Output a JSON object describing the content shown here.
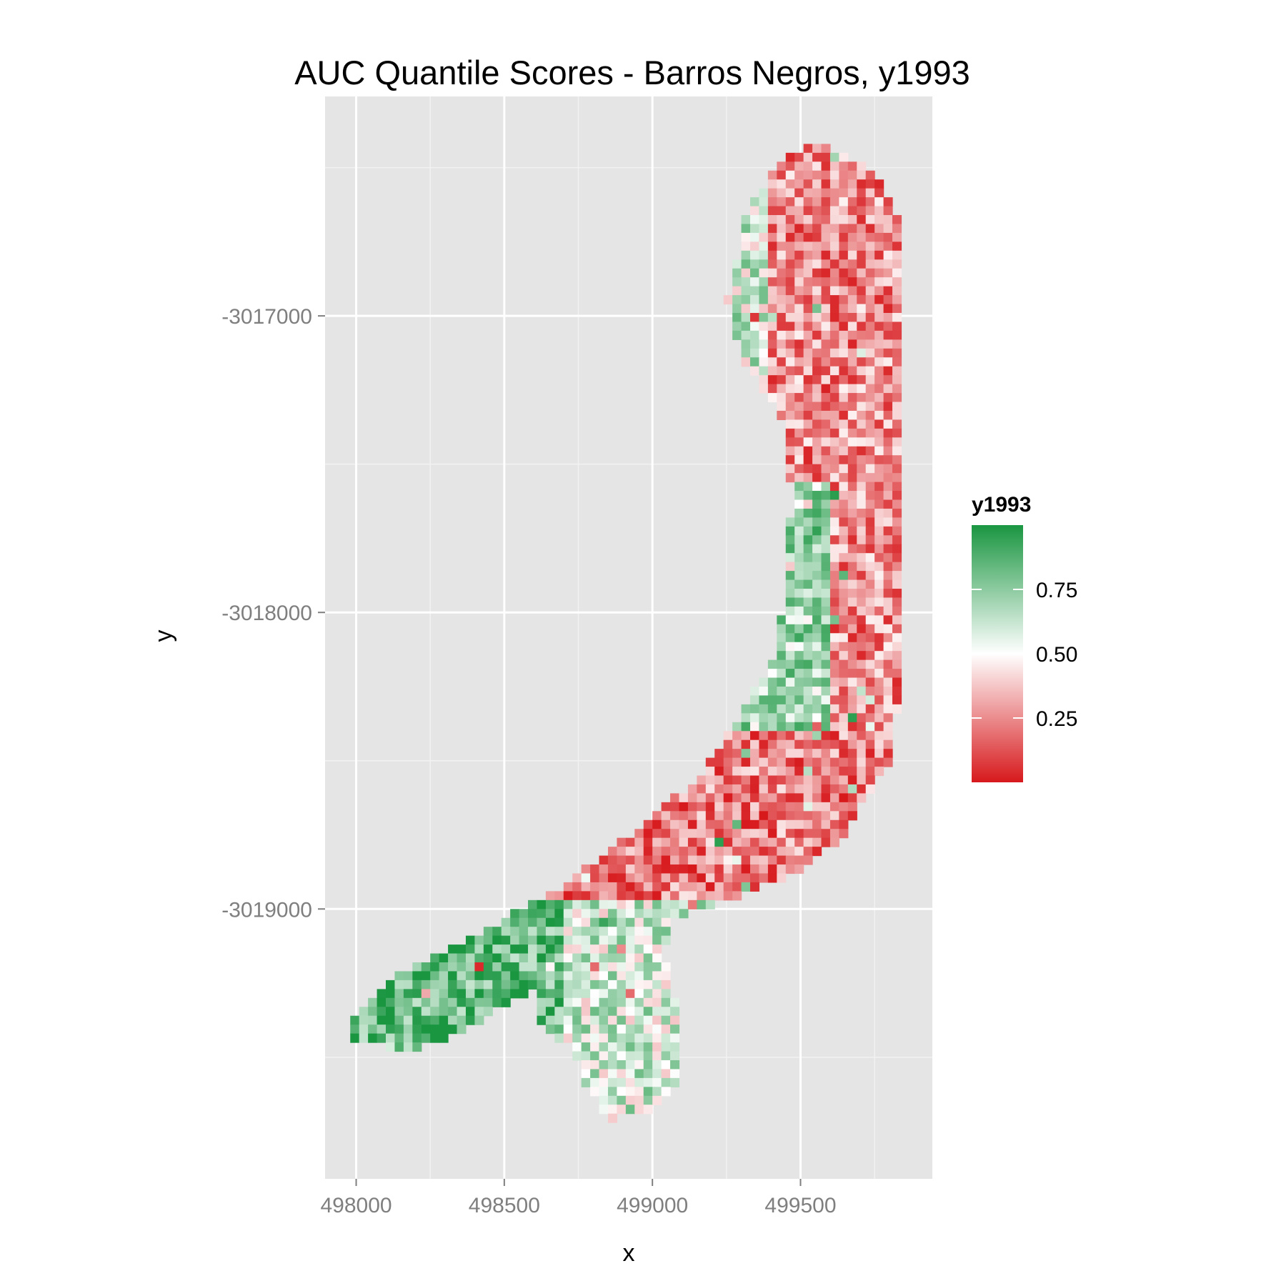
{
  "chart_data": {
    "type": "heatmap",
    "title": "AUC Quantile Scores - Barros Negros, y1993",
    "xlabel": "x",
    "ylabel": "y",
    "xlim": [
      497895,
      499945
    ],
    "ylim": [
      -3019910,
      -3016260
    ],
    "x_ticks": [
      {
        "value": 498000,
        "label": "498000"
      },
      {
        "value": 498500,
        "label": "498500"
      },
      {
        "value": 499000,
        "label": "499000"
      },
      {
        "value": 499500,
        "label": "499500"
      }
    ],
    "y_ticks": [
      {
        "value": -3017000,
        "label": "-3017000"
      },
      {
        "value": -3018000,
        "label": "-3018000"
      },
      {
        "value": -3019000,
        "label": "-3019000"
      }
    ],
    "grid": true,
    "cell_size": 30,
    "legend": {
      "title": "y1993",
      "position": "right",
      "range": [
        0,
        1
      ],
      "breaks": [
        {
          "value": 0.75,
          "label": "0.75"
        },
        {
          "value": 0.5,
          "label": "0.50"
        },
        {
          "value": 0.25,
          "label": "0.25"
        }
      ],
      "low_color": "#d7191c",
      "mid_color": "#ffffff",
      "high_color": "#1a9641"
    },
    "shape_outline": [
      [
        499480,
        -3016450
      ],
      [
        499560,
        -3016420
      ],
      [
        499760,
        -3016520
      ],
      [
        499830,
        -3016680
      ],
      [
        499840,
        -3017000
      ],
      [
        499845,
        -3017500
      ],
      [
        499840,
        -3018000
      ],
      [
        499830,
        -3018300
      ],
      [
        499800,
        -3018500
      ],
      [
        499640,
        -3018760
      ],
      [
        499480,
        -3018880
      ],
      [
        499250,
        -3018970
      ],
      [
        499080,
        -3019030
      ],
      [
        499040,
        -3019150
      ],
      [
        499090,
        -3019380
      ],
      [
        499080,
        -3019600
      ],
      [
        498990,
        -3019680
      ],
      [
        498860,
        -3019710
      ],
      [
        498790,
        -3019620
      ],
      [
        498720,
        -3019460
      ],
      [
        498620,
        -3019390
      ],
      [
        498600,
        -3019280
      ],
      [
        498520,
        -3019320
      ],
      [
        498370,
        -3019400
      ],
      [
        498200,
        -3019480
      ],
      [
        497990,
        -3019450
      ],
      [
        497980,
        -3019370
      ],
      [
        498120,
        -3019230
      ],
      [
        498420,
        -3019080
      ],
      [
        498700,
        -3018920
      ],
      [
        498950,
        -3018730
      ],
      [
        499150,
        -3018560
      ],
      [
        499300,
        -3018350
      ],
      [
        499420,
        -3018120
      ],
      [
        499450,
        -3017900
      ],
      [
        499470,
        -3017600
      ],
      [
        499440,
        -3017350
      ],
      [
        499300,
        -3017150
      ],
      [
        499250,
        -3016950
      ],
      [
        499320,
        -3016650
      ],
      [
        499420,
        -3016500
      ]
    ],
    "score_bands": [
      {
        "region": "northern lobe, west edge",
        "score": 0.6
      },
      {
        "region": "northern lobe, interior",
        "score": 0.25
      },
      {
        "region": "central channel, west side",
        "score": 0.7
      },
      {
        "region": "central channel, east side",
        "score": 0.25
      },
      {
        "region": "southern bend",
        "score": 0.22
      },
      {
        "region": "south-west arm",
        "score": 0.85
      },
      {
        "region": "southern arm",
        "score": 0.6
      }
    ]
  }
}
